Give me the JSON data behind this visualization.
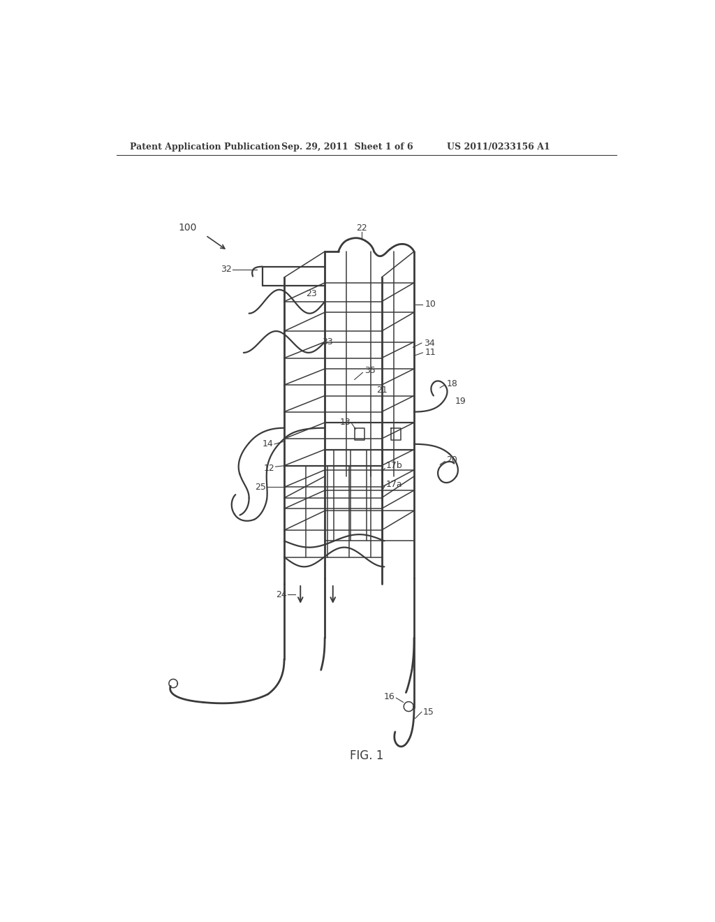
{
  "background_color": "#ffffff",
  "header_text": "Patent Application Publication",
  "header_date": "Sep. 29, 2011  Sheet 1 of 6",
  "header_patent": "US 2011/0233156 A1",
  "figure_label": "FIG. 1",
  "line_color": "#3a3a3a",
  "line_width": 1.6,
  "lw_thin": 1.1,
  "lw_thick": 2.0
}
